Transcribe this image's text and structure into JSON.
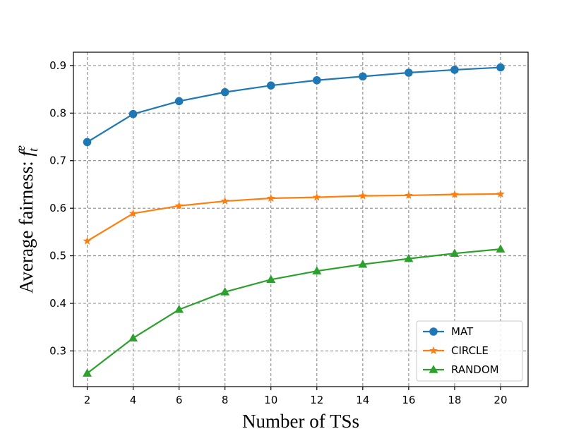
{
  "chart_data": {
    "type": "line",
    "title": "",
    "xlabel": "Number of TSs",
    "ylabel": "Average fairness: ",
    "ylabel_math": "f",
    "ylabel_sup": "e",
    "ylabel_sub": "t",
    "x": [
      2,
      4,
      6,
      8,
      10,
      12,
      14,
      16,
      18,
      20
    ],
    "xlim": [
      1.4,
      21.2
    ],
    "ylim": [
      0.225,
      0.928
    ],
    "xticks": [
      "2",
      "4",
      "6",
      "8",
      "10",
      "12",
      "14",
      "16",
      "18",
      "20"
    ],
    "yticks": [
      "0.3",
      "0.4",
      "0.5",
      "0.6",
      "0.7",
      "0.8",
      "0.9"
    ],
    "grid": true,
    "legend_position": "bottom-right",
    "series": [
      {
        "name": "MAT",
        "color": "#1f77b4",
        "marker": "circle",
        "values": [
          0.739,
          0.798,
          0.825,
          0.844,
          0.858,
          0.869,
          0.877,
          0.885,
          0.891,
          0.896
        ]
      },
      {
        "name": "CIRCLE",
        "color": "#ff7f0e",
        "marker": "star",
        "values": [
          0.531,
          0.589,
          0.605,
          0.615,
          0.621,
          0.623,
          0.626,
          0.627,
          0.629,
          0.63
        ]
      },
      {
        "name": "RANDOM",
        "color": "#2ca02c",
        "marker": "triangle",
        "values": [
          0.253,
          0.327,
          0.387,
          0.424,
          0.45,
          0.468,
          0.482,
          0.494,
          0.505,
          0.514
        ]
      }
    ]
  }
}
